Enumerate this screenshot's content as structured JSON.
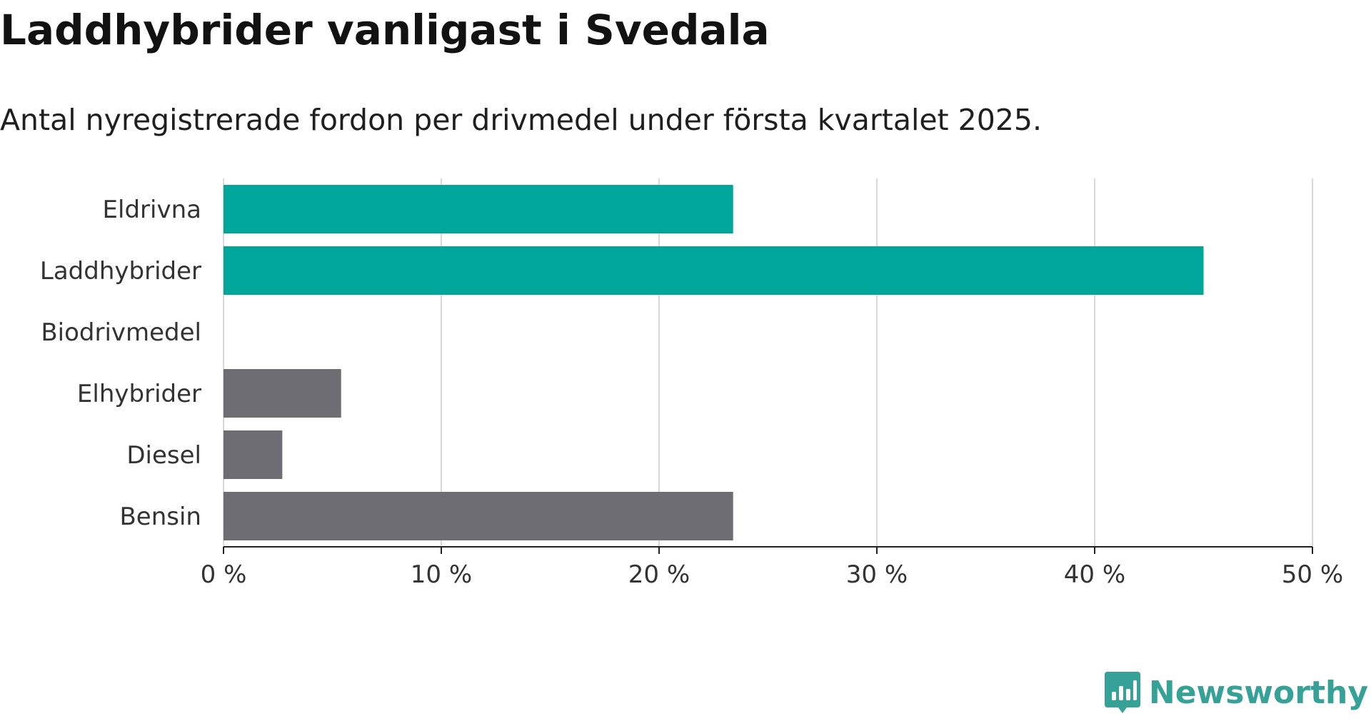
{
  "header": {
    "title": "Laddhybrider vanligast i Svedala",
    "subtitle": "Antal nyregistrerade fordon per drivmedel under första kvartalet 2025."
  },
  "brand": {
    "name": "Newsworthy",
    "icon": "newsworthy-logo-icon",
    "color": "#35a197"
  },
  "colors": {
    "highlight": "#00a69a",
    "default": "#6e6d73",
    "grid": "#d9d9d9",
    "axis": "#222222"
  },
  "chart_data": {
    "type": "bar",
    "orientation": "horizontal",
    "categories": [
      "Eldrivna",
      "Laddhybrider",
      "Biodrivmedel",
      "Elhybrider",
      "Diesel",
      "Bensin"
    ],
    "values": [
      23.4,
      45.0,
      0,
      5.4,
      2.7,
      23.4
    ],
    "highlighted": [
      true,
      true,
      false,
      false,
      false,
      false
    ],
    "xlim": [
      0,
      50
    ],
    "xticks": [
      0,
      10,
      20,
      30,
      40,
      50
    ],
    "xtick_labels": [
      "0 %",
      "10 %",
      "20 %",
      "30 %",
      "40 %",
      "50 %"
    ],
    "grid": true,
    "xlabel": "",
    "ylabel": ""
  }
}
